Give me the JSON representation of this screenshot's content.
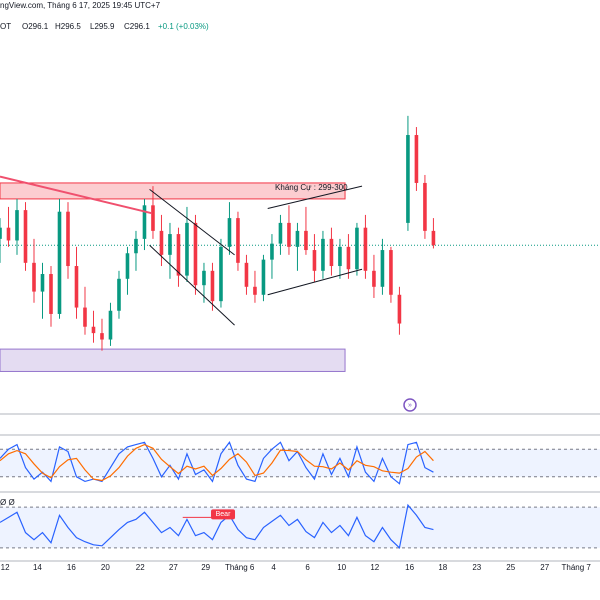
{
  "header": {
    "title": "ngView.com, Tháng 6 17, 2025 19:45 UTC+7",
    "symbol": "OT",
    "open": "O296.1",
    "high": "H296.5",
    "low": "L295.9",
    "close": "C296.1",
    "change": "+0.1 (+0.03%)"
  },
  "chart_data": {
    "type": "candlestick",
    "categories": [
      null,
      null,
      null,
      null,
      null,
      null,
      null,
      null,
      null,
      null,
      null,
      null,
      null,
      null,
      null,
      null,
      null,
      null,
      null,
      null,
      null,
      null,
      null,
      null,
      null,
      null,
      null,
      null,
      null,
      null,
      null,
      null,
      null,
      null,
      null,
      null,
      null,
      null,
      null,
      null,
      null,
      null,
      null,
      null,
      null,
      null,
      null,
      null,
      null,
      null,
      null,
      null
    ],
    "open": [
      296.5,
      297.2,
      296.4,
      298.3,
      295.0,
      293.2,
      294.3,
      291.8,
      298.2,
      294.8,
      292.2,
      291.0,
      290.6,
      290.2,
      292.0,
      294.0,
      295.6,
      296.5,
      298.6,
      297.0,
      295.5,
      296.8,
      294.2,
      297.5,
      293.6,
      294.5,
      292.6,
      296.0,
      297.8,
      295.0,
      293.5,
      293.0,
      295.2,
      296.2,
      297.5,
      296.0,
      297.0,
      295.8,
      294.5,
      296.5,
      294.8,
      296.0,
      294.6,
      297.2,
      294.5,
      293.5,
      295.8,
      293.0,
      297.5,
      303.0,
      300.0,
      297.0
    ],
    "high": [
      297.8,
      298.5,
      299.0,
      298.8,
      296.5,
      295.0,
      294.8,
      299.0,
      298.8,
      296.0,
      293.5,
      292.0,
      291.5,
      292.5,
      294.5,
      296.0,
      297.0,
      299.0,
      299.8,
      298.0,
      297.5,
      297.2,
      298.5,
      298.0,
      295.0,
      295.0,
      296.5,
      298.8,
      298.2,
      295.5,
      294.5,
      295.5,
      296.8,
      298.0,
      298.6,
      297.5,
      298.5,
      296.8,
      297.0,
      297.2,
      296.5,
      296.8,
      297.5,
      298.0,
      295.5,
      296.5,
      296.0,
      293.5,
      304.2,
      303.5,
      300.5,
      297.8
    ],
    "low": [
      295.0,
      296.0,
      295.5,
      294.5,
      292.5,
      291.5,
      291.0,
      291.5,
      294.0,
      291.5,
      290.5,
      290.0,
      289.5,
      289.8,
      291.5,
      293.0,
      294.5,
      295.8,
      296.5,
      294.8,
      294.0,
      293.5,
      293.8,
      293.0,
      292.5,
      292.0,
      292.2,
      295.5,
      294.5,
      293.0,
      292.5,
      292.6,
      294.0,
      295.5,
      295.5,
      294.5,
      295.5,
      293.8,
      294.0,
      294.2,
      294.0,
      294.0,
      294.2,
      294.0,
      292.8,
      293.0,
      292.5,
      290.5,
      297.0,
      299.5,
      296.5,
      295.9
    ],
    "close": [
      297.2,
      296.4,
      298.3,
      295.0,
      293.2,
      294.3,
      291.8,
      298.2,
      294.8,
      292.2,
      291.0,
      290.6,
      290.2,
      292.0,
      294.0,
      295.6,
      296.5,
      298.6,
      297.0,
      295.5,
      296.8,
      294.2,
      297.5,
      293.6,
      294.5,
      292.6,
      296.0,
      297.8,
      295.0,
      293.5,
      293.0,
      295.2,
      296.2,
      297.5,
      296.0,
      297.0,
      295.8,
      294.5,
      296.5,
      294.8,
      296.0,
      294.6,
      297.2,
      294.5,
      293.5,
      295.8,
      293.0,
      291.2,
      303.0,
      300.0,
      297.0,
      296.1
    ],
    "up_color": "#089981",
    "down_color": "#f23645",
    "xlim": [
      0,
      70.6
    ],
    "ylim": [
      285.6,
      310.2
    ],
    "xticks": [
      {
        "value": 0.6,
        "label": "12"
      },
      {
        "value": 4.4,
        "label": "14"
      },
      {
        "value": 8.4,
        "label": "16"
      },
      {
        "value": 12.4,
        "label": "20"
      },
      {
        "value": 16.5,
        "label": "22"
      },
      {
        "value": 20.4,
        "label": "27"
      },
      {
        "value": 24.2,
        "label": "29"
      },
      {
        "value": 28.2,
        "label": "Tháng 6"
      },
      {
        "value": 32.2,
        "label": "4"
      },
      {
        "value": 36.2,
        "label": "6"
      },
      {
        "value": 40.2,
        "label": "10"
      },
      {
        "value": 44.1,
        "label": "12"
      },
      {
        "value": 48.2,
        "label": "16"
      },
      {
        "value": 52.1,
        "label": "18"
      },
      {
        "value": 56.1,
        "label": "23"
      },
      {
        "value": 60.1,
        "label": "25"
      },
      {
        "value": 64.1,
        "label": "27"
      },
      {
        "value": 67.8,
        "label": "Tháng 7"
      }
    ],
    "zones": [
      {
        "label": "Kháng Cự : 299-300",
        "x": [
          0,
          40.6
        ],
        "y": [
          299,
          300
        ],
        "color": "#f23645"
      },
      {
        "x": [
          0,
          40.6
        ],
        "y": [
          288.2,
          289.6
        ],
        "color": "#9575cd"
      }
    ],
    "lines": [
      {
        "x": [
          0,
          17.9
        ],
        "y": [
          300.4,
          298.1
        ],
        "color": "#f0506e"
      },
      {
        "x": [
          17.6,
          27.6
        ],
        "y": [
          299.6,
          295.5
        ],
        "color": "#131722"
      },
      {
        "x": [
          17.6,
          27.6
        ],
        "y": [
          296.1,
          291.1
        ],
        "color": "#131722"
      },
      {
        "x": [
          31.5,
          42.6
        ],
        "y": [
          298.4,
          299.8
        ],
        "color": "#131722"
      },
      {
        "x": [
          31.5,
          42.6
        ],
        "y": [
          293.0,
          294.6
        ],
        "color": "#131722"
      }
    ],
    "stoch": {
      "ylim": [
        0,
        100
      ],
      "bands": [
        80,
        20
      ],
      "series": [
        {
          "name": "K",
          "color": "#2962ff",
          "values": [
            60,
            80,
            90,
            40,
            15,
            30,
            10,
            85,
            75,
            20,
            10,
            15,
            10,
            40,
            70,
            85,
            90,
            95,
            60,
            20,
            45,
            15,
            70,
            25,
            35,
            10,
            70,
            95,
            45,
            15,
            10,
            60,
            80,
            95,
            55,
            75,
            40,
            15,
            70,
            25,
            60,
            20,
            85,
            30,
            10,
            60,
            20,
            5,
            90,
            95,
            40,
            30
          ]
        },
        {
          "name": "D",
          "color": "#ff6d00",
          "values": [
            55,
            70,
            77,
            70,
            48,
            28,
            18,
            42,
            57,
            60,
            35,
            15,
            12,
            22,
            40,
            65,
            82,
            90,
            82,
            58,
            42,
            27,
            43,
            37,
            43,
            23,
            38,
            58,
            70,
            52,
            23,
            28,
            50,
            78,
            77,
            75,
            57,
            43,
            42,
            37,
            50,
            35,
            55,
            45,
            42,
            33,
            30,
            28,
            38,
            63,
            75,
            55
          ]
        }
      ]
    },
    "rsi": {
      "ylim": [
        20,
        80
      ],
      "bands": [
        70,
        30
      ],
      "label": "Ø  Ø",
      "annotation": "Bear",
      "annotation_x": [
        21.5,
        25.3
      ],
      "series": [
        {
          "name": "RSI",
          "color": "#2962ff",
          "values": [
            55,
            60,
            65,
            45,
            38,
            45,
            35,
            62,
            50,
            40,
            36,
            33,
            32,
            40,
            48,
            55,
            58,
            65,
            55,
            45,
            50,
            42,
            58,
            42,
            45,
            38,
            55,
            62,
            48,
            40,
            38,
            50,
            56,
            62,
            52,
            58,
            46,
            40,
            55,
            45,
            52,
            42,
            60,
            42,
            36,
            50,
            38,
            30,
            72,
            62,
            50,
            48
          ]
        }
      ]
    }
  }
}
